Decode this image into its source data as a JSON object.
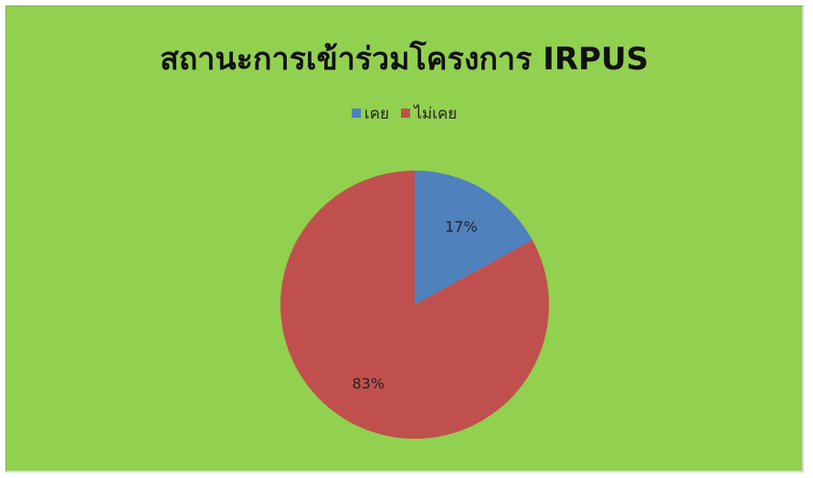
{
  "chart_data": {
    "type": "pie",
    "title": "สถานะการเข้าร่วมโครงการ IRPUS",
    "legend_position": "top",
    "background_color": "#92d050",
    "slices": [
      {
        "label": "เคย",
        "value": 17,
        "value_label": "17%",
        "color": "#4f81bd"
      },
      {
        "label": "ไม่เคย",
        "value": 83,
        "value_label": "83%",
        "color": "#c0504d"
      }
    ]
  }
}
